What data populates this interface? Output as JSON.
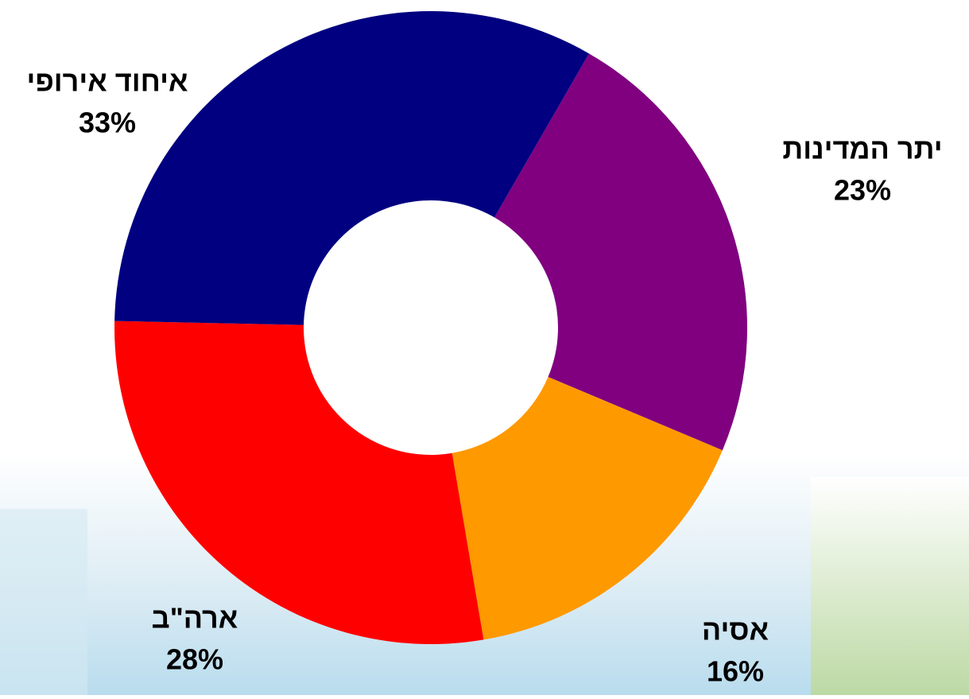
{
  "chart_data": {
    "type": "donut",
    "categories": [
      "יתר המדינות",
      "אסיה",
      "ארה\"ב",
      "איחוד אירופי"
    ],
    "values": [
      23,
      16,
      28,
      33
    ],
    "value_labels": [
      "23%",
      "16%",
      "28%",
      "33%"
    ],
    "colors": [
      "#800080",
      "#ff9900",
      "#ff0000",
      "#000080"
    ]
  }
}
